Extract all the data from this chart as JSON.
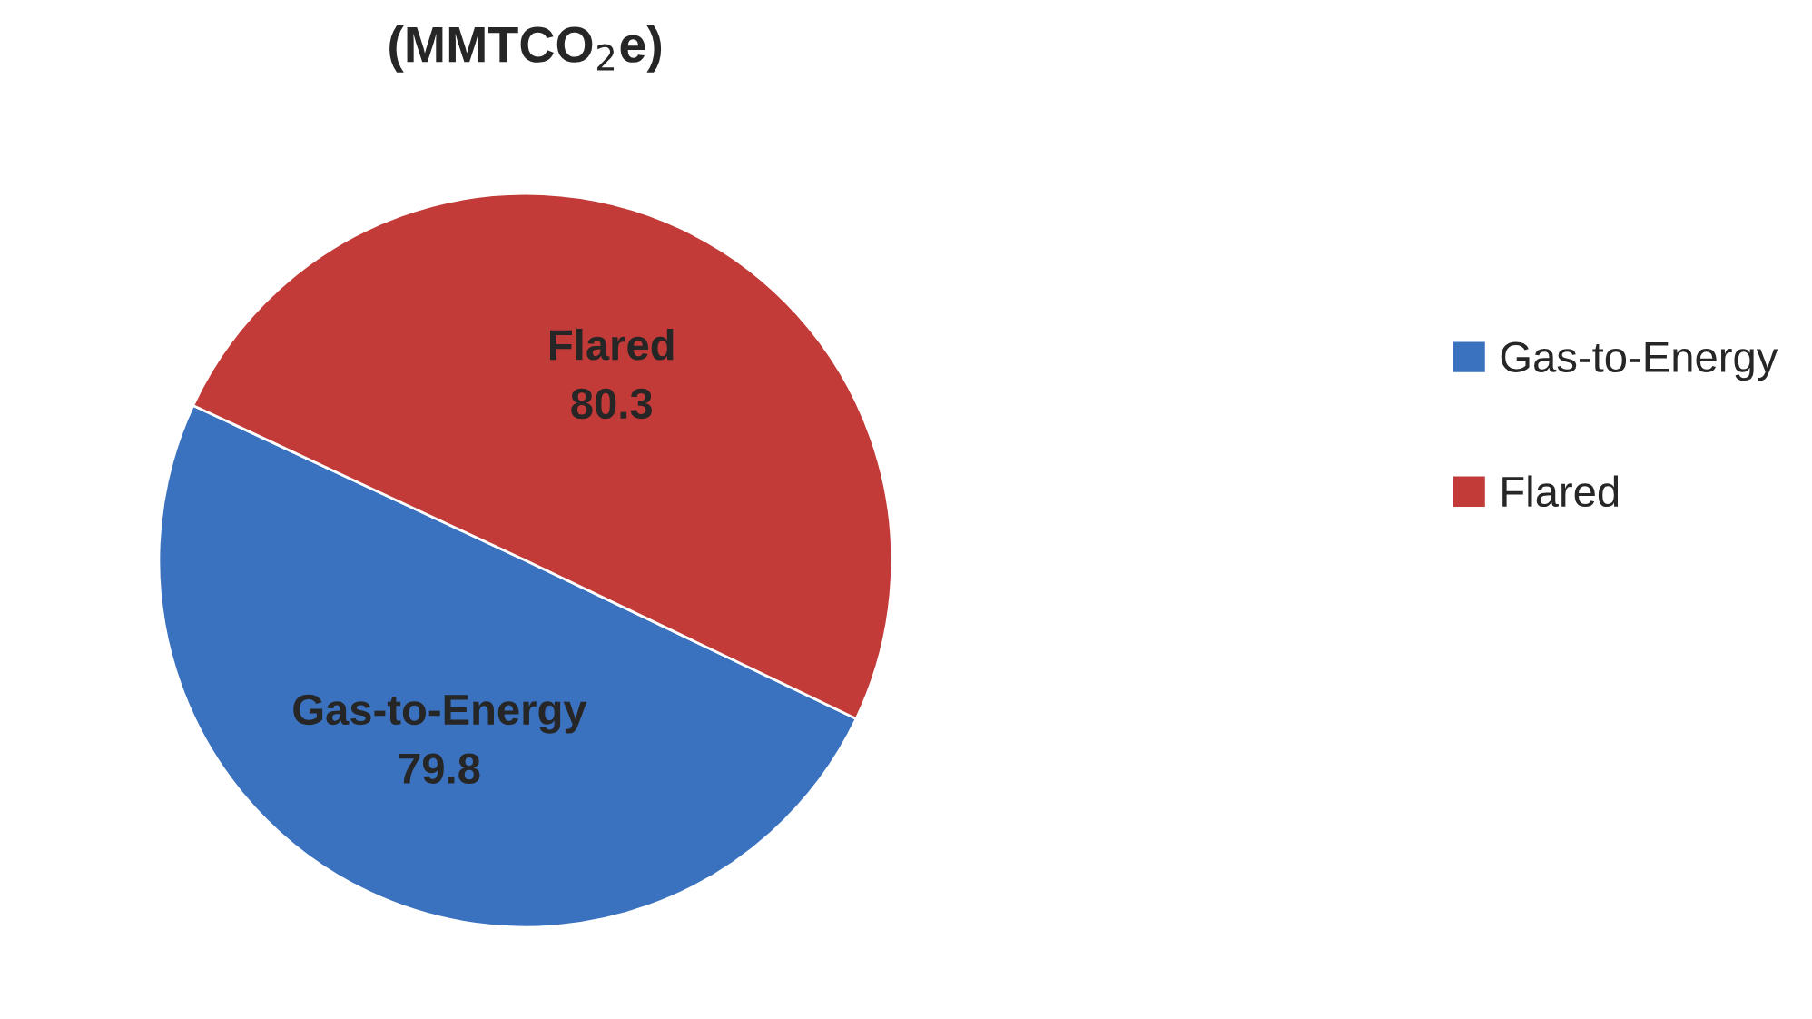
{
  "chart_data": {
    "type": "pie",
    "title": "(MMTCO$_{2}$e)",
    "categories": [
      "Gas-to-Energy",
      "Flared"
    ],
    "values": [
      79.8,
      80.3
    ],
    "colors": [
      "#3b72bf",
      "#c23b38"
    ],
    "data_labels": true,
    "legend": "right"
  }
}
